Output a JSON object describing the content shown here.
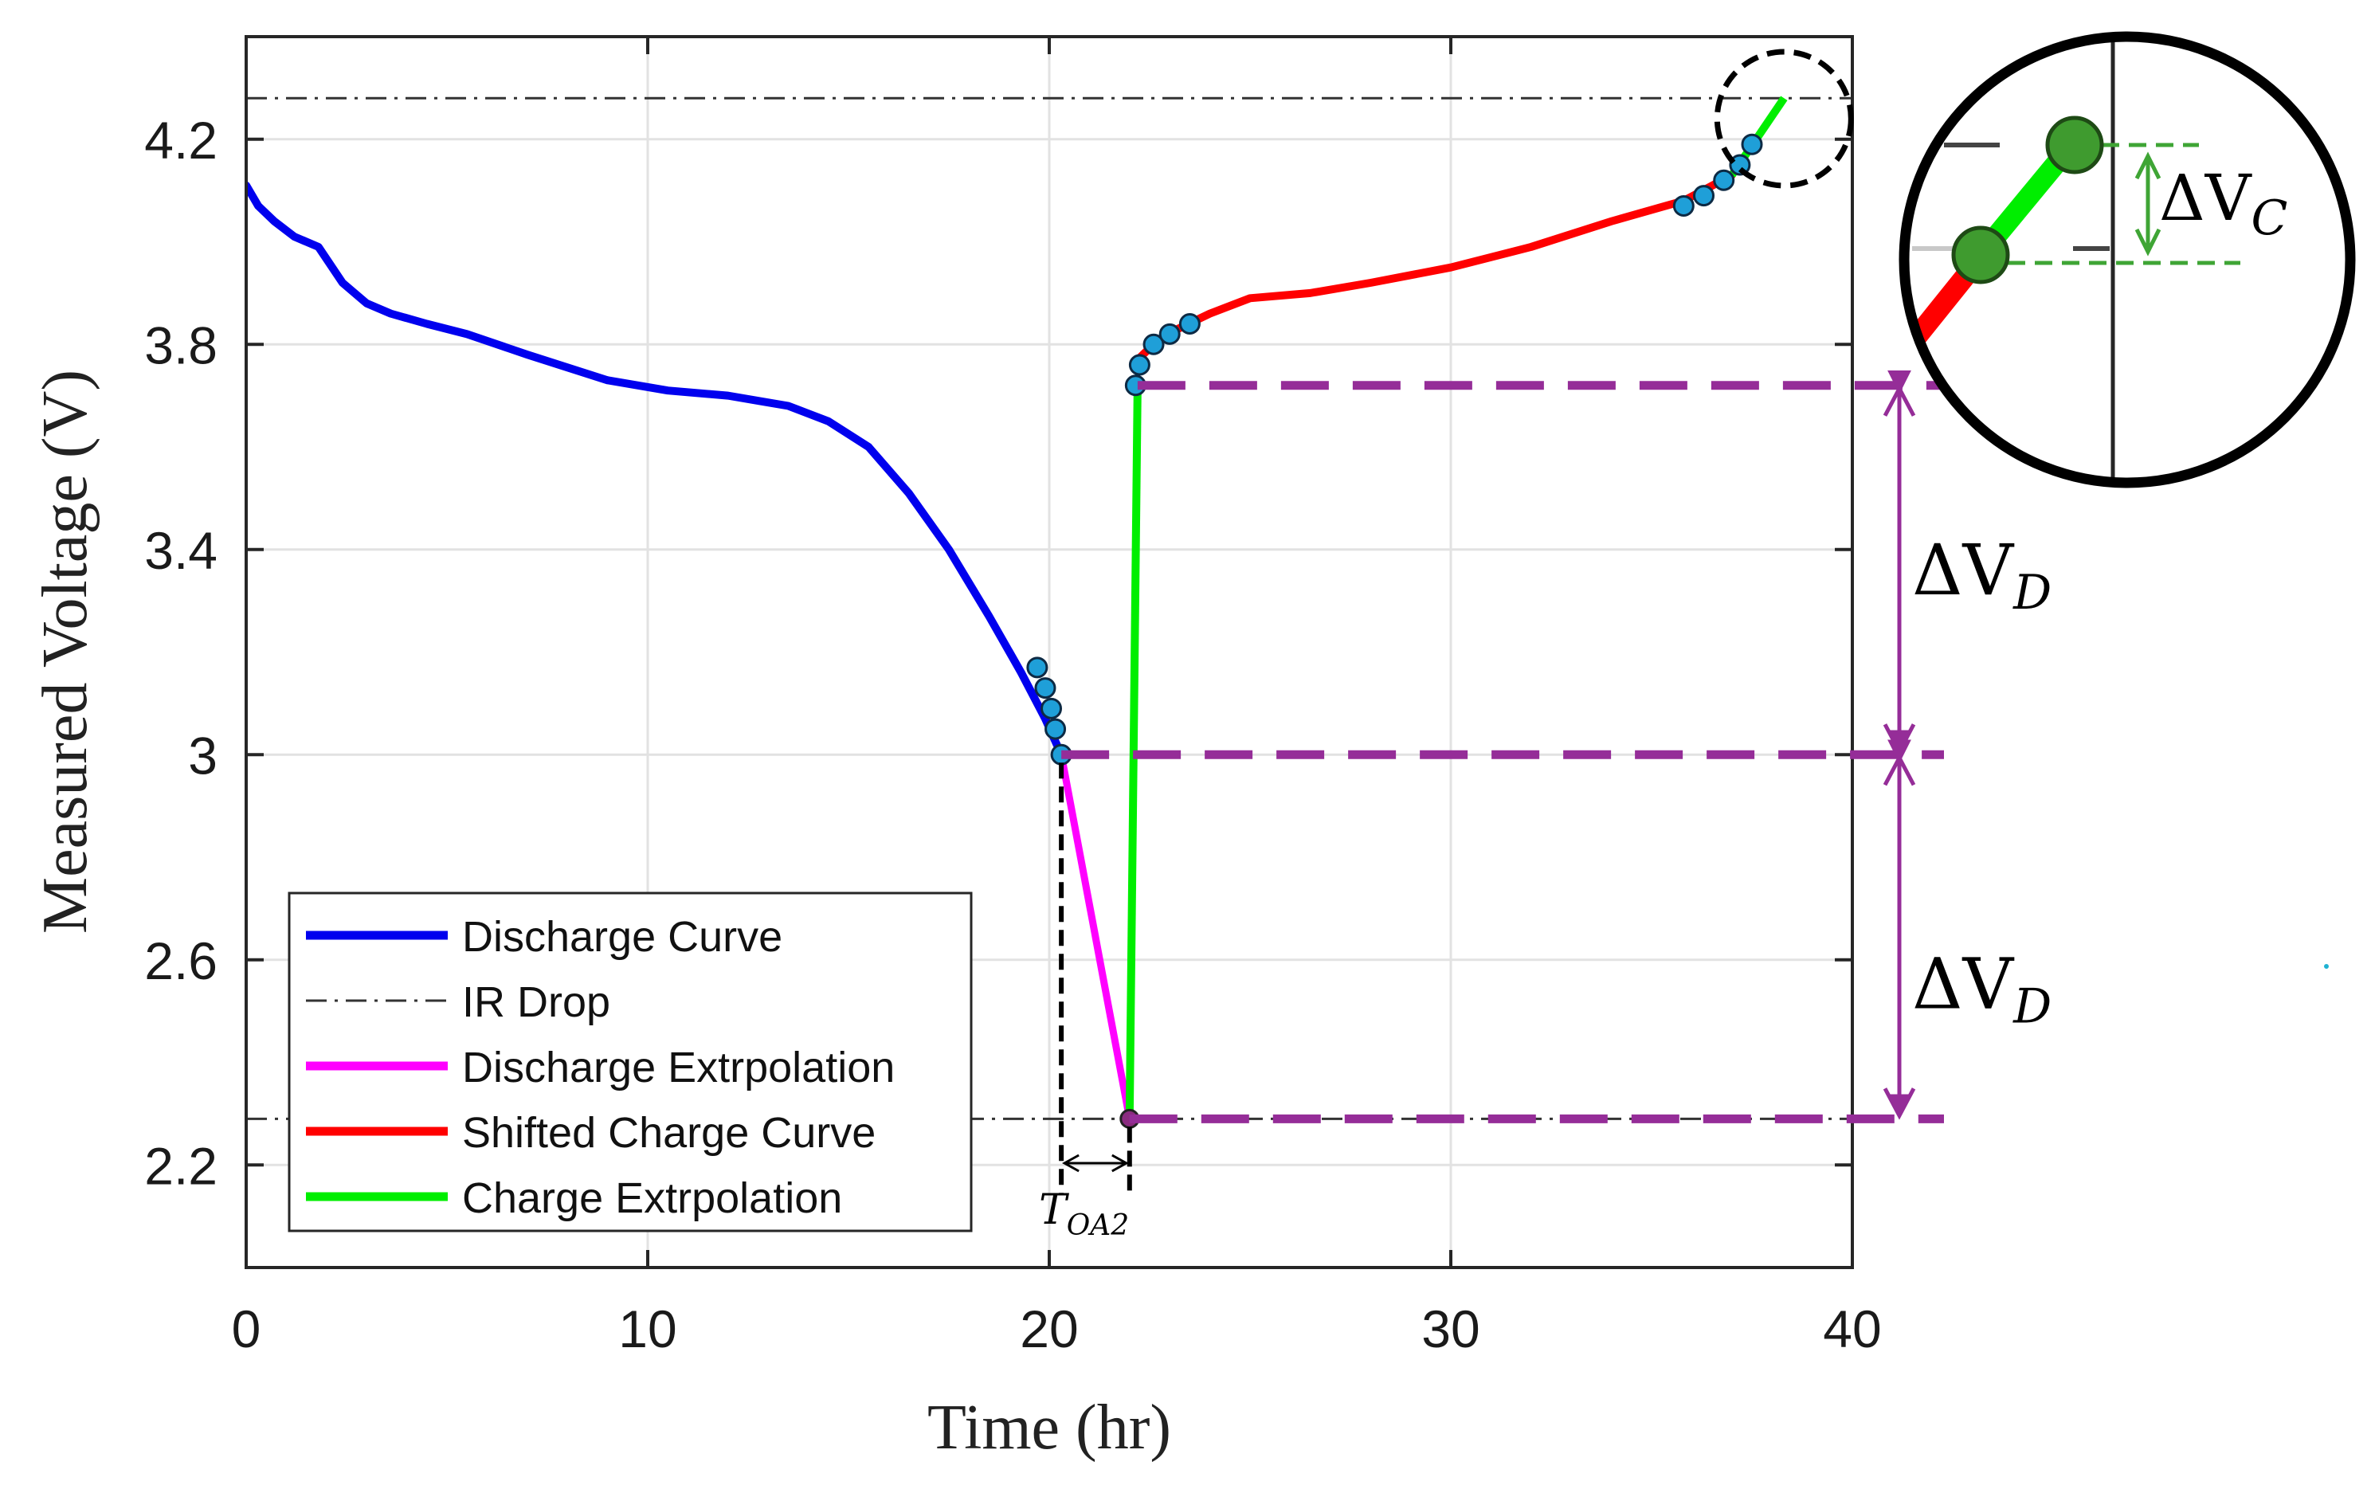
{
  "chart_data": {
    "type": "line",
    "xlabel": "Time (hr)",
    "ylabel": "Measured Voltage (V)",
    "xlim": [
      0,
      40
    ],
    "ylim": [
      2.0,
      4.4
    ],
    "xticks": [
      0,
      10,
      20,
      30,
      40
    ],
    "xtick_labels": [
      "0",
      "10",
      "20",
      "30",
      "40"
    ],
    "yticks": [
      2.2,
      2.6,
      3.0,
      3.4,
      3.8,
      4.2
    ],
    "ytick_labels": [
      "2.2",
      "2.6",
      "3",
      "3.4",
      "3.8",
      "4.2"
    ],
    "grid": true,
    "legend_position": "bottom-left",
    "series": [
      {
        "name": "Discharge Curve",
        "color": "#0000ee",
        "style": "solid",
        "x": [
          0,
          0.3,
          0.7,
          1.2,
          1.8,
          2.4,
          3.0,
          3.6,
          4.5,
          5.5,
          7.0,
          9.0,
          10.5,
          12.0,
          13.5,
          14.5,
          15.5,
          16.5,
          17.5,
          18.5,
          19.3,
          19.9,
          20.3
        ],
        "y": [
          4.11,
          4.07,
          4.04,
          4.01,
          3.99,
          3.92,
          3.88,
          3.86,
          3.84,
          3.82,
          3.78,
          3.73,
          3.71,
          3.7,
          3.68,
          3.65,
          3.6,
          3.51,
          3.4,
          3.27,
          3.16,
          3.07,
          3.0
        ]
      },
      {
        "name": "IR Drop",
        "color": "#333333",
        "style": "dash-dot",
        "lines": [
          {
            "x": [
              0,
              40
            ],
            "y": [
              4.28,
              4.28
            ]
          },
          {
            "x": [
              0,
              40
            ],
            "y": [
              2.29,
              2.29
            ]
          }
        ]
      },
      {
        "name": "Discharge Extrpolation",
        "color": "#ff00ff",
        "style": "solid",
        "x": [
          20.3,
          22.0
        ],
        "y": [
          3.0,
          2.29
        ]
      },
      {
        "name": "Shifted Charge Curve",
        "color": "#ff0000",
        "style": "solid",
        "x": [
          22.2,
          22.6,
          23.2,
          24.0,
          25.0,
          26.5,
          28.0,
          30.0,
          32.0,
          34.0,
          35.8,
          37.0
        ],
        "y": [
          3.77,
          3.8,
          3.83,
          3.86,
          3.89,
          3.9,
          3.92,
          3.95,
          3.99,
          4.04,
          4.08,
          4.13
        ]
      },
      {
        "name": "Charge Extrpolation",
        "color": "#00ee00",
        "style": "solid",
        "segments": [
          {
            "x": [
              22.0,
              22.2
            ],
            "y": [
              2.29,
              3.72
            ]
          },
          {
            "x": [
              37.0,
              38.3
            ],
            "y": [
              4.13,
              4.28
            ]
          }
        ]
      }
    ],
    "markers": {
      "discharge_points": {
        "x": [
          19.7,
          19.9,
          20.05,
          20.15,
          20.3
        ],
        "y": [
          3.17,
          3.13,
          3.09,
          3.05,
          3.0
        ]
      },
      "charge_start_points": {
        "x": [
          22.15,
          22.25,
          22.6,
          23.0,
          23.5
        ],
        "y": [
          3.72,
          3.76,
          3.8,
          3.82,
          3.84
        ]
      },
      "charge_end_points": {
        "x": [
          35.8,
          36.3,
          36.8,
          37.2,
          37.5
        ],
        "y": [
          4.07,
          4.09,
          4.12,
          4.15,
          4.19
        ]
      },
      "discharge_extrapolation_end": {
        "x": 22.0,
        "y": 2.29
      }
    },
    "annotations": {
      "delta_v_d_label": "ΔV",
      "delta_v_d_sub": "D",
      "delta_v_c_label": "ΔV",
      "delta_v_c_sub": "C",
      "t_oa2_label": "T",
      "t_oa2_sub": "OA2"
    },
    "colors": {
      "annotation": "#952d98",
      "marker_fill": "#1f9fd8",
      "zoom_marker_fill": "#3f9b2f",
      "zoom_dash": "#3fa535"
    }
  }
}
